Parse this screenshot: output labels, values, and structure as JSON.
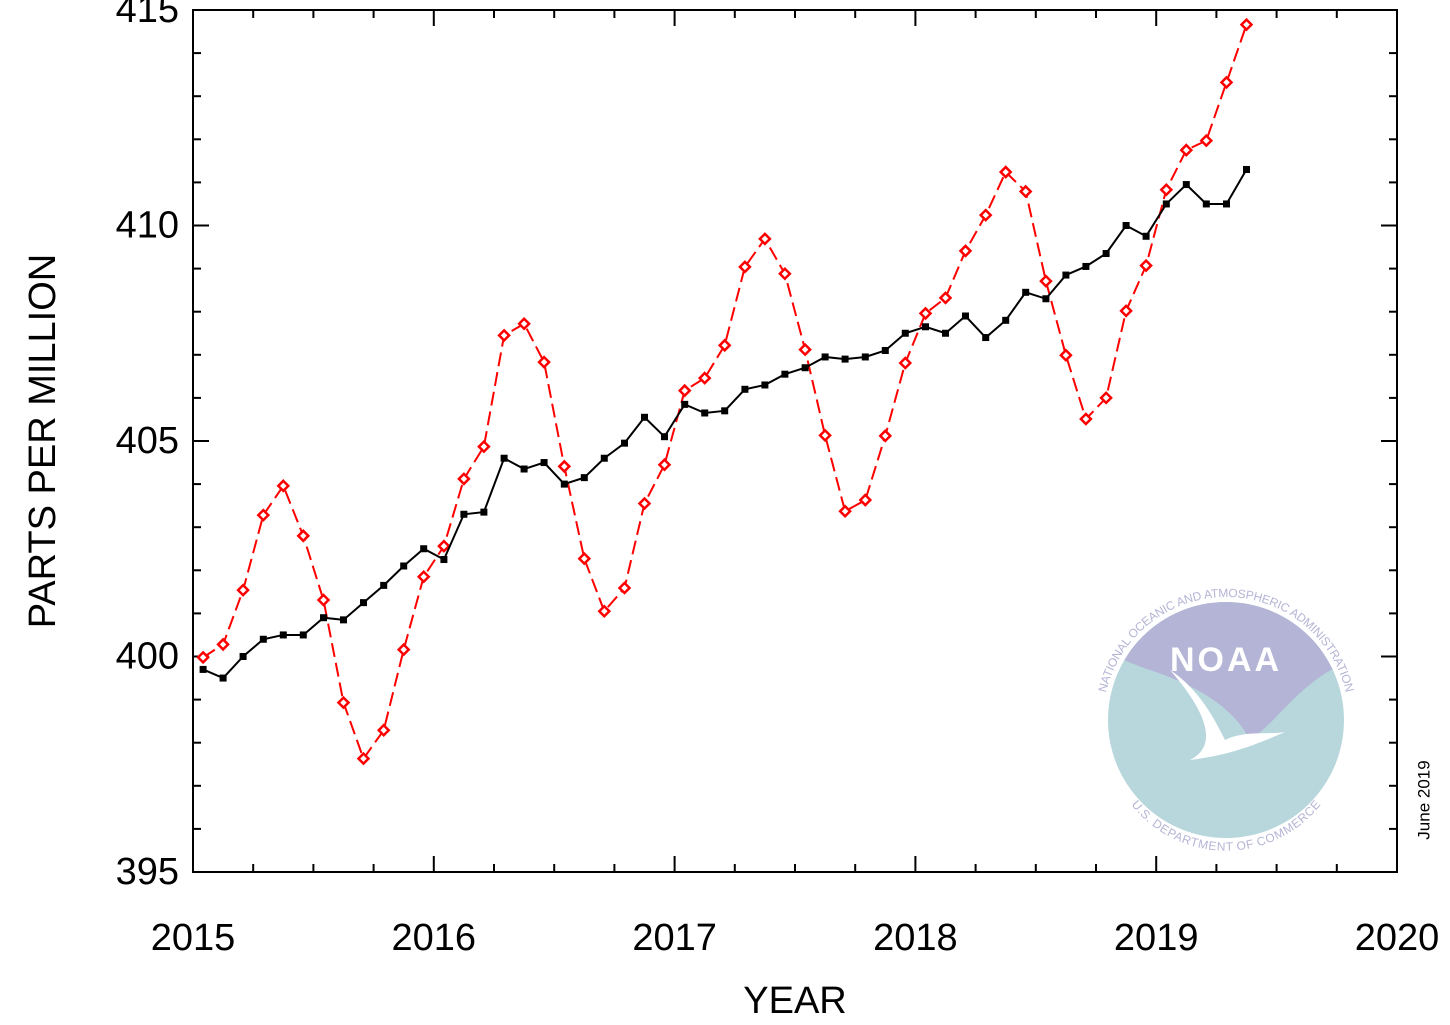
{
  "chart_data": {
    "type": "line",
    "xlabel": "YEAR",
    "ylabel": "PARTS PER MILLION",
    "annotation": "June 2019",
    "logo": {
      "name": "NOAA",
      "ring_top": "NATIONAL OCEANIC AND ATMOSPHERIC ADMINISTRATION",
      "ring_bottom": "U.S. DEPARTMENT OF COMMERCE"
    },
    "x": [
      2015.042,
      2015.125,
      2015.208,
      2015.292,
      2015.375,
      2015.458,
      2015.542,
      2015.625,
      2015.708,
      2015.792,
      2015.875,
      2015.958,
      2016.042,
      2016.125,
      2016.208,
      2016.292,
      2016.375,
      2016.458,
      2016.542,
      2016.625,
      2016.708,
      2016.792,
      2016.875,
      2016.958,
      2017.042,
      2017.125,
      2017.208,
      2017.292,
      2017.375,
      2017.458,
      2017.542,
      2017.625,
      2017.708,
      2017.792,
      2017.875,
      2017.958,
      2018.042,
      2018.125,
      2018.208,
      2018.292,
      2018.375,
      2018.458,
      2018.542,
      2018.625,
      2018.708,
      2018.792,
      2018.875,
      2018.958,
      2019.042,
      2019.125,
      2019.208,
      2019.292,
      2019.375
    ],
    "series": [
      {
        "color": "#ff0000",
        "dashed": true,
        "marker": "diamond",
        "values": [
          399.98,
          400.28,
          401.54,
          403.28,
          403.96,
          402.8,
          401.31,
          398.93,
          397.63,
          398.29,
          400.16,
          401.85,
          402.56,
          404.12,
          404.87,
          407.45,
          407.72,
          406.83,
          404.41,
          402.27,
          401.05,
          401.59,
          403.55,
          404.45,
          406.17,
          406.46,
          407.22,
          409.04,
          409.69,
          408.88,
          407.12,
          405.13,
          403.37,
          403.63,
          405.12,
          406.81,
          407.96,
          408.32,
          409.41,
          410.24,
          411.24,
          410.79,
          408.71,
          406.99,
          405.51,
          406.0,
          408.02,
          409.07,
          410.83,
          411.75,
          411.97,
          413.32,
          414.66
        ]
      },
      {
        "color": "#000000",
        "dashed": false,
        "marker": "square",
        "values": [
          399.7,
          399.5,
          400.0,
          400.4,
          400.5,
          400.5,
          400.9,
          400.85,
          401.25,
          401.65,
          402.1,
          402.5,
          402.25,
          403.3,
          403.35,
          404.6,
          404.35,
          404.5,
          404.0,
          404.15,
          404.6,
          404.95,
          405.55,
          405.1,
          405.85,
          405.65,
          405.7,
          406.2,
          406.3,
          406.55,
          406.7,
          406.95,
          406.9,
          406.95,
          407.1,
          407.5,
          407.65,
          407.5,
          407.9,
          407.4,
          407.8,
          408.45,
          408.3,
          408.85,
          409.05,
          409.35,
          410.0,
          409.75,
          410.5,
          410.95,
          410.5,
          410.5,
          411.3
        ]
      }
    ],
    "xlim": [
      2015,
      2020
    ],
    "xticks": [
      2015,
      2016,
      2017,
      2018,
      2019,
      2020
    ],
    "xminorticks": [
      2015.25,
      2015.5,
      2015.75,
      2016.25,
      2016.5,
      2016.75,
      2017.25,
      2017.5,
      2017.75,
      2018.25,
      2018.5,
      2018.75,
      2019.25,
      2019.5,
      2019.75
    ],
    "ylim": [
      395,
      415
    ],
    "yticks": [
      395,
      400,
      405,
      410,
      415
    ],
    "yminorticks": [
      396,
      397,
      398,
      399,
      401,
      402,
      403,
      404,
      406,
      407,
      408,
      409,
      411,
      412,
      413,
      414
    ]
  }
}
